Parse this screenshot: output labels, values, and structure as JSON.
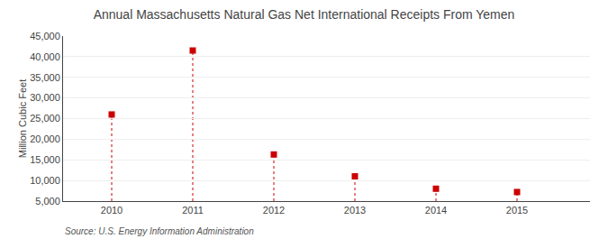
{
  "chart_data": {
    "type": "scatter",
    "title": "Annual Massachusetts Natural Gas Net International Receipts From Yemen",
    "ylabel": "Million Cubic Feet",
    "annotations": [
      "Source: U.S. Energy Information Administration"
    ],
    "x": [
      2010,
      2011,
      2012,
      2013,
      2014,
      2015
    ],
    "values": [
      26000,
      41500,
      16300,
      11000,
      8000,
      7200
    ],
    "color": "#cc0000",
    "marker": "square",
    "line_style": "dotted",
    "xlim": [
      2009.4,
      2015.9
    ],
    "xticks": [
      2010,
      2011,
      2012,
      2013,
      2014,
      2015
    ],
    "ylim": [
      5000,
      45000
    ],
    "yticks": [
      {
        "value": 5000,
        "label": "5,000"
      },
      {
        "value": 10000,
        "label": "10,000"
      },
      {
        "value": 15000,
        "label": "15,000"
      },
      {
        "value": 20000,
        "label": "20,000"
      },
      {
        "value": 25000,
        "label": "25,000"
      },
      {
        "value": 30000,
        "label": "30,000"
      },
      {
        "value": 35000,
        "label": "35,000"
      },
      {
        "value": 40000,
        "label": "40,000"
      },
      {
        "value": 45000,
        "label": "45,000"
      }
    ],
    "grid": true
  }
}
